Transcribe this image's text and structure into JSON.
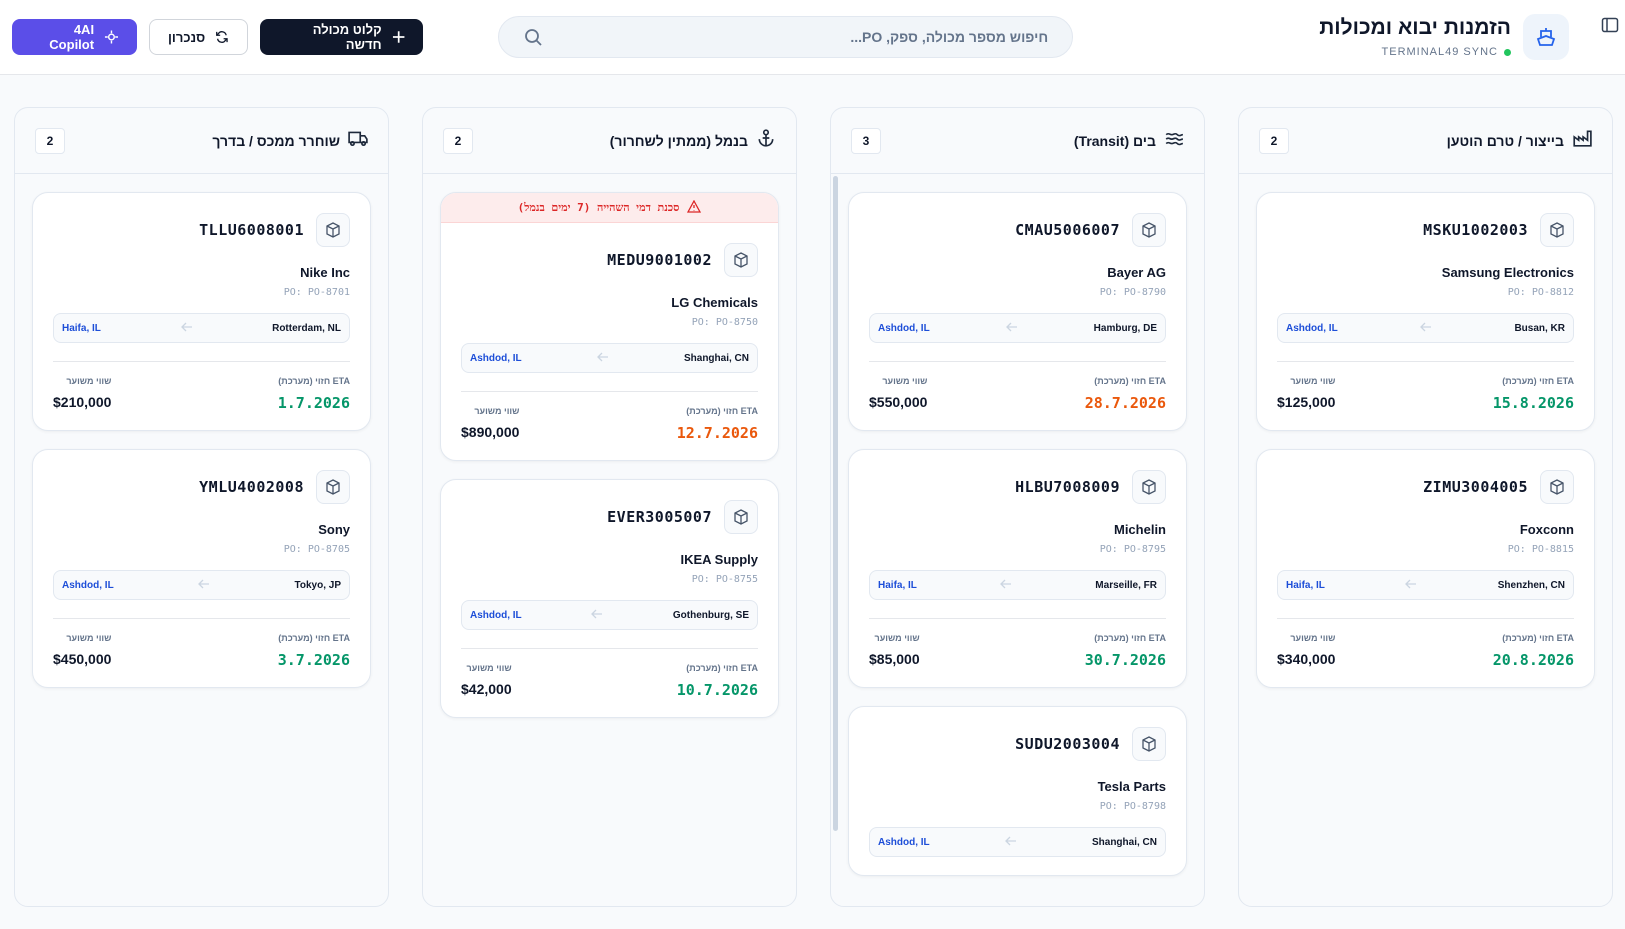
{
  "header": {
    "title": "הזמנות יבוא ומכולות",
    "sync": "TERMINAL49 SYNC",
    "search_placeholder": "חיפוש מספר מכולה, ספק, PO...",
    "buttons": [
      "קלוט מכולה חדשה",
      "סנכרון",
      "4AI Copilot"
    ]
  },
  "labels": {
    "po_prefix": "PO:",
    "eta": "ETA חזוי (מערכת)",
    "value": "שווי משוער"
  },
  "columns": [
    {
      "title": "בייצור / טרם הוטען",
      "count": 2,
      "cards": [
        {
          "container": "MSKU1002003",
          "supplier": "Samsung Electronics",
          "po": "PO-8812",
          "origin": "Busan, KR",
          "destination": "Ashdod, IL",
          "eta": "15.8.2026",
          "eta_color": "#059669",
          "value": "$125,000"
        },
        {
          "container": "ZIMU3004005",
          "supplier": "Foxconn",
          "po": "PO-8815",
          "origin": "Shenzhen, CN",
          "destination": "Haifa, IL",
          "eta": "20.8.2026",
          "eta_color": "#059669",
          "value": "$340,000"
        }
      ]
    },
    {
      "title": "בים (Transit)",
      "count": 3,
      "cards": [
        {
          "container": "CMAU5006007",
          "supplier": "Bayer AG",
          "po": "PO-8790",
          "origin": "Hamburg, DE",
          "destination": "Ashdod, IL",
          "eta": "28.7.2026",
          "eta_color": "#ea580c",
          "value": "$550,000"
        },
        {
          "container": "HLBU7008009",
          "supplier": "Michelin",
          "po": "PO-8795",
          "origin": "Marseille, FR",
          "destination": "Haifa, IL",
          "eta": "30.7.2026",
          "eta_color": "#059669",
          "value": "$85,000"
        },
        {
          "container": "SUDU2003004",
          "supplier": "Tesla Parts",
          "po": "PO-8798",
          "origin": "Shanghai, CN",
          "destination": "Ashdod, IL"
        }
      ]
    },
    {
      "title": "בנמל (ממתין לשחרור)",
      "count": 2,
      "cards": [
        {
          "alert": "סכנת דמי השהייה (7 ימים בנמל)",
          "container": "MEDU9001002",
          "supplier": "LG Chemicals",
          "po": "PO-8750",
          "origin": "Shanghai, CN",
          "destination": "Ashdod, IL",
          "eta": "12.7.2026",
          "eta_color": "#ea580c",
          "value": "$890,000"
        },
        {
          "container": "EVER3005007",
          "supplier": "IKEA Supply",
          "po": "PO-8755",
          "origin": "Gothenburg, SE",
          "destination": "Ashdod, IL",
          "eta": "10.7.2026",
          "eta_color": "#059669",
          "value": "$42,000"
        }
      ]
    },
    {
      "title": "שוחרר ממכס / בדרך",
      "count": 2,
      "cards": [
        {
          "container": "TLLU6008001",
          "supplier": "Nike Inc",
          "po": "PO-8701",
          "origin": "Rotterdam, NL",
          "destination": "Haifa, IL",
          "eta": "1.7.2026",
          "eta_color": "#059669",
          "value": "$210,000"
        },
        {
          "container": "YMLU4002008",
          "supplier": "Sony",
          "po": "PO-8705",
          "origin": "Tokyo, JP",
          "destination": "Ashdod, IL",
          "eta": "3.7.2026",
          "eta_color": "#059669",
          "value": "$450,000"
        }
      ]
    }
  ]
}
